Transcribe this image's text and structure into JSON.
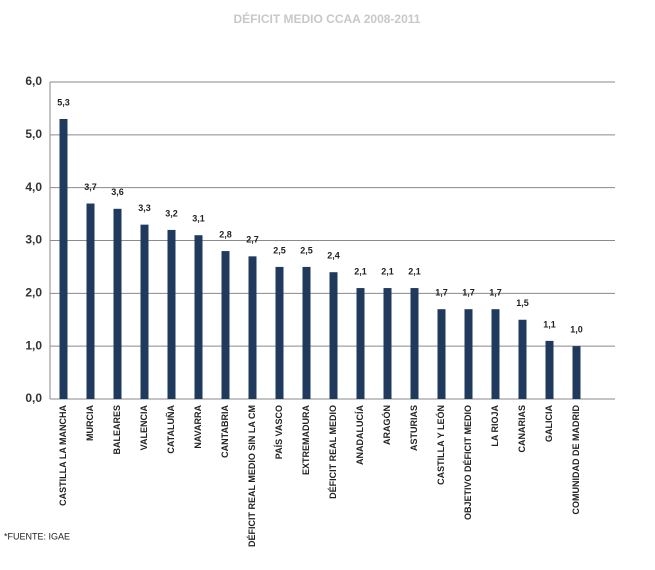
{
  "chart_data": {
    "type": "bar",
    "title": "DÉFICIT MEDIO CCAA 2008-2011",
    "categories": [
      "CASTILLA LA MANCHA",
      "MURCIA",
      "BALEARES",
      "VALENCIA",
      "CATALUÑA",
      "NAVARRA",
      "CANTABRIA",
      "DÉFICIT REAL MEDIO SIN LA CM",
      "PAÍS VASCO",
      "EXTREMADURA",
      "DÉFICIT REAL MEDIO",
      "ANADALUCÍA",
      "ARAGÓN",
      "ASTURIAS",
      "CASTILLA Y LEÓN",
      "OBJETIVO DÉFICIT MEDIO",
      "LA RIOJA",
      "CANARIAS",
      "GALICIA",
      "COMUNIDAD DE MADRID"
    ],
    "values": [
      5.3,
      3.7,
      3.6,
      3.3,
      3.2,
      3.1,
      2.8,
      2.7,
      2.5,
      2.5,
      2.4,
      2.1,
      2.1,
      2.1,
      1.7,
      1.7,
      1.7,
      1.5,
      1.1,
      1.0
    ],
    "value_labels": [
      "5,3",
      "3,7",
      "3,6",
      "3,3",
      "3,2",
      "3,1",
      "2,8",
      "2,7",
      "2,5",
      "2,5",
      "2,4",
      "2,1",
      "2,1",
      "2,1",
      "1,7",
      "1,7",
      "1,7",
      "1,5",
      "1,1",
      "1,0"
    ],
    "color": "#1f3a5c",
    "ylim": [
      0,
      6
    ],
    "yticks": [
      {
        "value": 0,
        "label": "0,0"
      },
      {
        "value": 1,
        "label": "1,0"
      },
      {
        "value": 2,
        "label": "2,0"
      },
      {
        "value": 3,
        "label": "3,0"
      },
      {
        "value": 4,
        "label": "4,0"
      },
      {
        "value": 5,
        "label": "5,0"
      },
      {
        "value": 6,
        "label": "6,0"
      }
    ],
    "grid": true,
    "note": "*FUENTE: IGAE"
  }
}
